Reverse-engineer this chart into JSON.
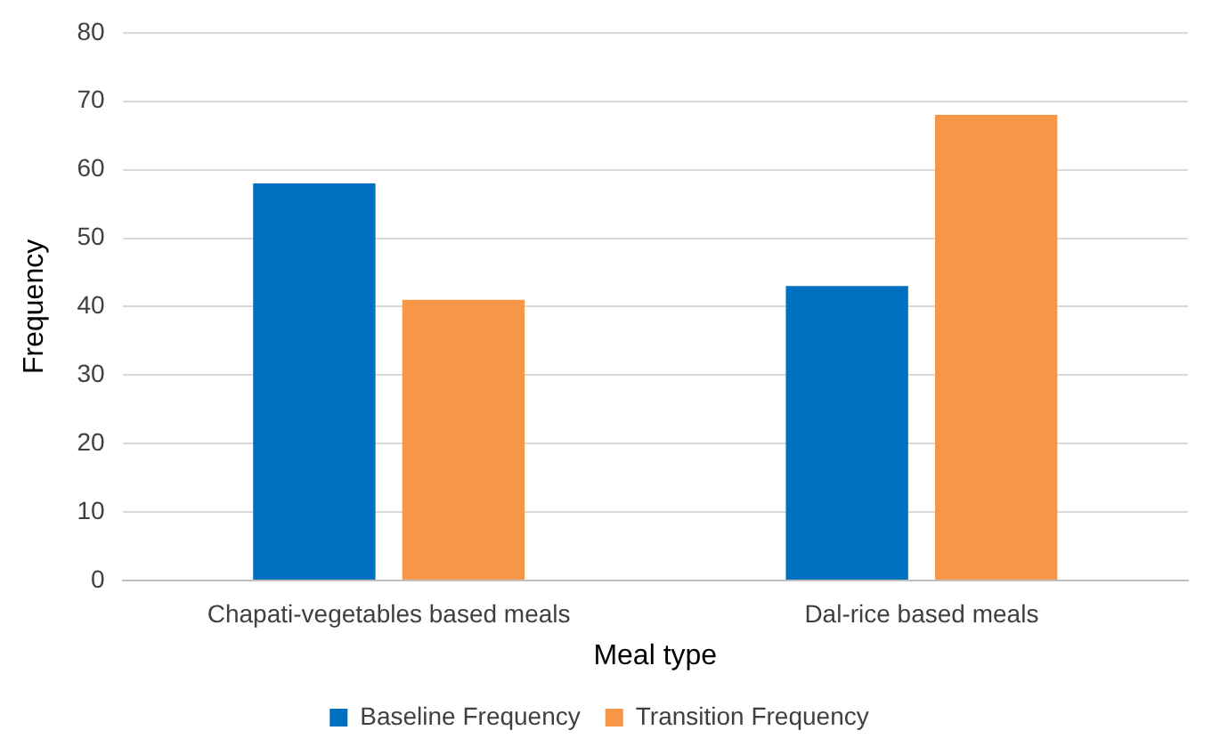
{
  "chart_data": {
    "type": "bar",
    "xlabel": "Meal type",
    "ylabel": "Frequency",
    "categories": [
      "Chapati-vegetables based meals",
      "Dal-rice based meals"
    ],
    "series": [
      {
        "name": "Baseline Frequency",
        "color": "#0070c0",
        "values": [
          58,
          43
        ]
      },
      {
        "name": "Transition Frequency",
        "color": "#f79646",
        "values": [
          41,
          68
        ]
      }
    ],
    "ylim": [
      0,
      80
    ],
    "yticks": [
      0,
      10,
      20,
      30,
      40,
      50,
      60,
      70,
      80
    ],
    "grid": "y",
    "legend": "bottom"
  }
}
